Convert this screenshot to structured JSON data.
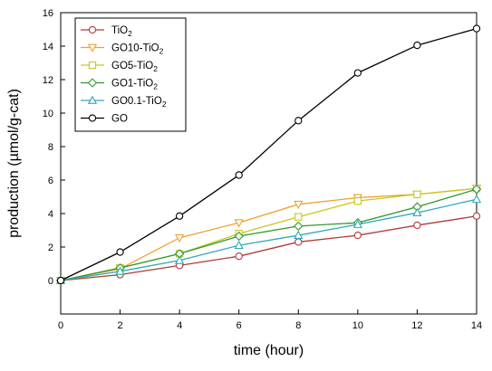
{
  "chart_data": {
    "type": "line",
    "xlabel": "time (hour)",
    "ylabel": "production (µmol/g-cat)",
    "xlim": [
      0,
      14
    ],
    "ylim": [
      -2,
      16
    ],
    "xticks": [
      0,
      2,
      4,
      6,
      8,
      10,
      12,
      14
    ],
    "yticks": [
      0,
      2,
      4,
      6,
      8,
      10,
      12,
      14,
      16
    ],
    "grid": false,
    "legend_position": "top-left",
    "x": [
      0,
      2,
      4,
      6,
      8,
      10,
      12,
      14
    ],
    "series": [
      {
        "name": "TiO₂",
        "label_base": "TiO",
        "label_sub": "2",
        "color": "#b03a3a",
        "marker": "circle",
        "values": [
          0,
          0.35,
          0.9,
          1.45,
          2.3,
          2.7,
          3.3,
          3.85
        ]
      },
      {
        "name": "GO10-TiO₂",
        "label_base": "GO10-TiO",
        "label_sub": "2",
        "color": "#f0a030",
        "marker": "triangle-down",
        "values": [
          0,
          0.7,
          2.55,
          3.45,
          4.55,
          4.95,
          5.15,
          5.5
        ]
      },
      {
        "name": "GO5-TiO₂",
        "label_base": "GO5-TiO",
        "label_sub": "2",
        "color": "#c8c820",
        "marker": "square",
        "values": [
          0,
          0.75,
          1.6,
          2.8,
          3.8,
          4.75,
          5.15,
          5.5
        ]
      },
      {
        "name": "GO1-TiO₂",
        "label_base": "GO1-TiO",
        "label_sub": "2",
        "color": "#2f9a2f",
        "marker": "diamond",
        "values": [
          0,
          0.75,
          1.6,
          2.65,
          3.25,
          3.45,
          4.4,
          5.45
        ]
      },
      {
        "name": "GO0.1-TiO₂",
        "label_base": "GO0.1-TiO",
        "label_sub": "2",
        "color": "#30a8b8",
        "marker": "triangle-up",
        "values": [
          0,
          0.55,
          1.2,
          2.1,
          2.7,
          3.35,
          4.05,
          4.85
        ]
      },
      {
        "name": "GO",
        "label_base": "GO",
        "label_sub": "",
        "color": "#000000",
        "marker": "circle",
        "values": [
          0,
          1.7,
          3.85,
          6.3,
          9.55,
          12.4,
          14.05,
          15.05
        ]
      }
    ]
  }
}
